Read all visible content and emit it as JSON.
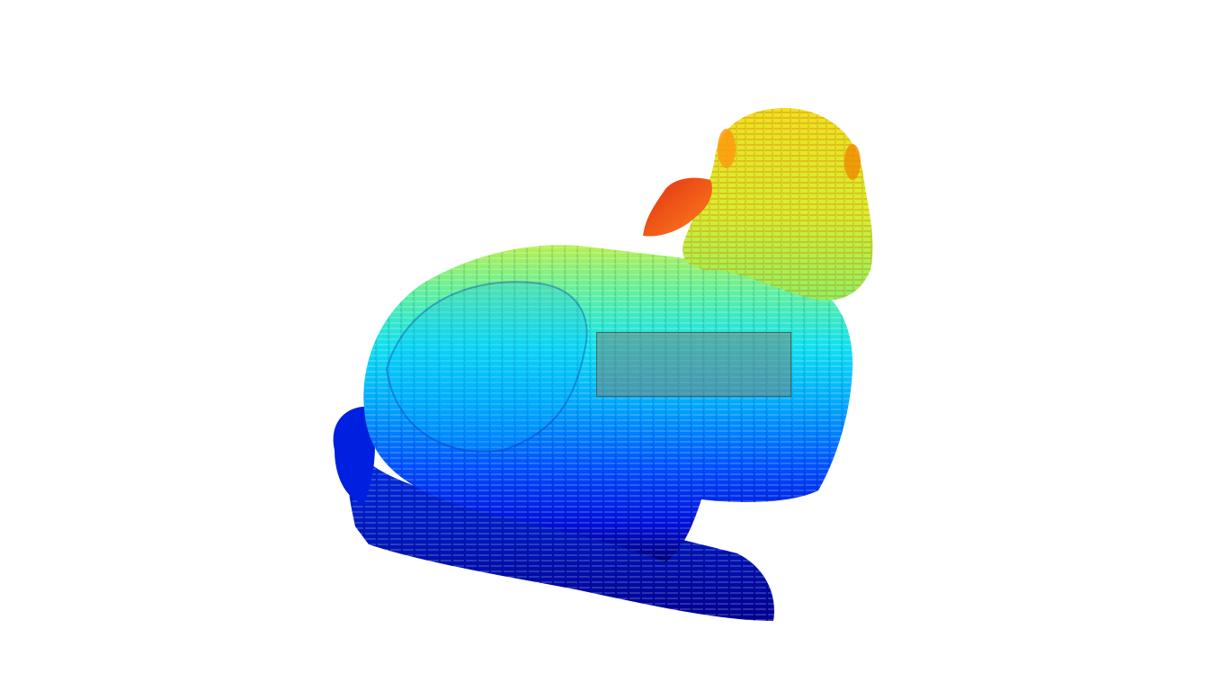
{
  "scene": {
    "background": "#ffffff",
    "object": "duck-mesh",
    "colormap": "jet",
    "colormap_stops": [
      "#00008b",
      "#0000ff",
      "#0080ff",
      "#00e5ff",
      "#7fff7f",
      "#ffff00",
      "#ff8000",
      "#ff0000"
    ]
  },
  "selection": {
    "fill": "#788778",
    "border": "#3c5a50"
  }
}
